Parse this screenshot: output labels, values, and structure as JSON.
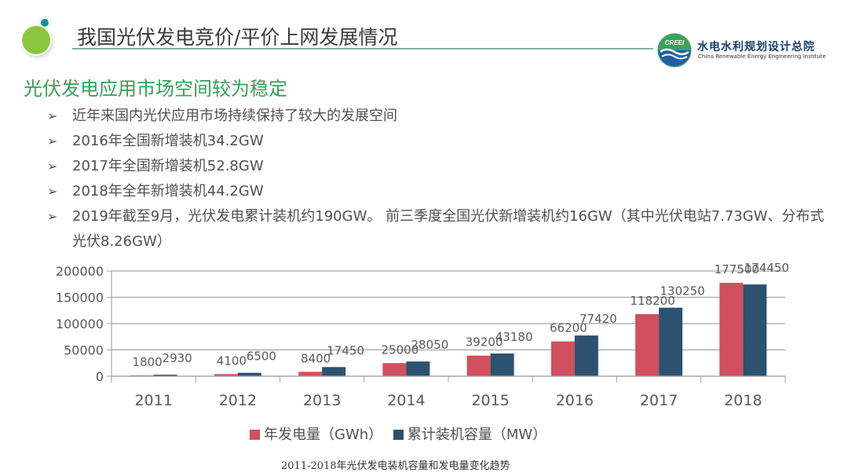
{
  "header": {
    "title": "我国光伏发电竞价/平价上网发展情况",
    "org_logo_text": "CREEI",
    "org_name": "水电水利规划设计总院",
    "org_name_en": "China Renewable Energy Engineering Institute"
  },
  "content": {
    "subtitle": "光伏发电应用市场空间较为稳定",
    "bullet_symbol": "➢",
    "bullets": [
      "近年来国内光伏应用市场持续保持了较大的发展空间",
      "2016年全国新增装机34.2GW",
      "2017年全国新增装机52.8GW",
      "2018年全年新增装机44.2GW",
      "2019年截至9月，光伏发电累计装机约190GW。 前三季度全国光伏新增装机约16GW（其中光伏电站7.73GW、分布式光伏8.26GW）"
    ]
  },
  "chart_data": {
    "type": "bar",
    "title": "",
    "caption": "2011-2018年光伏发电装机容量和发电量变化趋势",
    "xlabel": "",
    "ylabel": "",
    "categories": [
      "2011",
      "2012",
      "2013",
      "2014",
      "2015",
      "2016",
      "2017",
      "2018"
    ],
    "series": [
      {
        "name": "年发电量（GWh）",
        "color": "#d14f5f",
        "values": [
          1800,
          4100,
          8400,
          25000,
          39200,
          66200,
          118200,
          177500
        ]
      },
      {
        "name": "累计装机容量（MW）",
        "color": "#2c5270",
        "values": [
          2930,
          6500,
          17450,
          28050,
          43180,
          77420,
          130250,
          174450
        ]
      }
    ],
    "ylim": [
      0,
      200000
    ],
    "yticks": [
      "0",
      "50000",
      "100000",
      "150000",
      "200000"
    ],
    "grid": true,
    "data_labels": true,
    "legend_position": "bottom"
  }
}
